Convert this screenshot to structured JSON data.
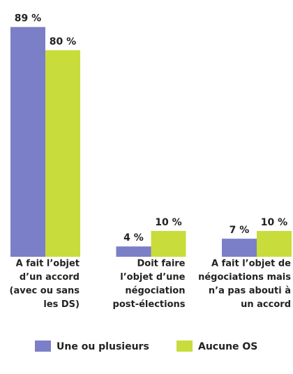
{
  "chart_data": {
    "type": "bar",
    "categories": [
      [
        "A fait l’objet",
        "d’un accord",
        "(avec ou sans",
        "les DS)"
      ],
      [
        "Doit faire",
        "l’objet d’une",
        "négociation",
        "post-élections"
      ],
      [
        "A fait l’objet de",
        "négociations mais",
        "n’a pas abouti à",
        "un accord"
      ]
    ],
    "series": [
      {
        "name": "Une ou plusieurs",
        "color": "#7b7fc8",
        "values": [
          89,
          4,
          7
        ],
        "value_labels": [
          "89 %",
          "4 %",
          "7 %"
        ]
      },
      {
        "name": "Aucune OS",
        "color": "#c8dc3c",
        "values": [
          80,
          10,
          10
        ],
        "value_labels": [
          "80 %",
          "10 %",
          "10 %"
        ]
      }
    ],
    "ylim": [
      0,
      90
    ]
  }
}
